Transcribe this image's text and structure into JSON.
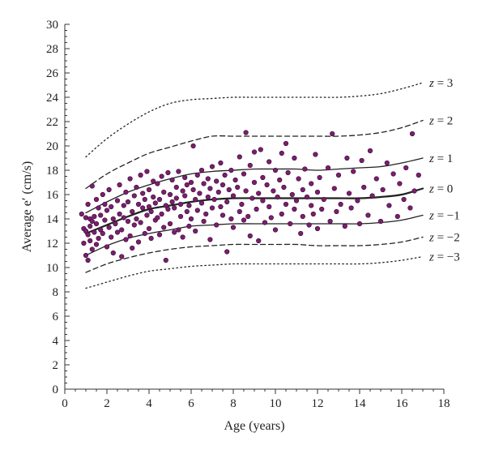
{
  "chart_data": {
    "type": "scatter",
    "xlabel": "Age (years)",
    "ylabel": "Average e′ (cm/s)",
    "xlim": [
      0,
      18
    ],
    "ylim": [
      0,
      30
    ],
    "xticks": [
      0,
      2,
      4,
      6,
      8,
      10,
      12,
      14,
      16,
      18
    ],
    "yticks": [
      0,
      2,
      4,
      6,
      8,
      10,
      12,
      14,
      16,
      18,
      20,
      22,
      24,
      26,
      28,
      30
    ],
    "grid": false,
    "point_color": "#7a1f6e",
    "curves": [
      {
        "label": "z = 3",
        "style": "dotted",
        "x": [
          1,
          2,
          3,
          4,
          5,
          6,
          7,
          8,
          9,
          10,
          11,
          12,
          13,
          14,
          15,
          16,
          17
        ],
        "y": [
          19.1,
          20.6,
          21.8,
          22.8,
          23.5,
          23.8,
          23.9,
          24.0,
          24.0,
          24.0,
          24.0,
          24.0,
          24.0,
          24.1,
          24.3,
          24.7,
          25.2
        ]
      },
      {
        "label": "z = 2",
        "style": "dashed",
        "x": [
          1,
          2,
          3,
          4,
          5,
          6,
          7,
          8,
          9,
          10,
          11,
          12,
          13,
          14,
          15,
          16,
          17
        ],
        "y": [
          16.5,
          17.7,
          18.6,
          19.4,
          19.9,
          20.4,
          20.8,
          20.8,
          20.8,
          20.8,
          20.8,
          20.8,
          20.8,
          20.9,
          21.1,
          21.5,
          22.1
        ]
      },
      {
        "label": "z = 1",
        "style": "solid",
        "x": [
          1,
          2,
          3,
          4,
          5,
          6,
          7,
          8,
          9,
          10,
          11,
          12,
          13,
          14,
          15,
          16,
          17
        ],
        "y": [
          14.5,
          15.4,
          16.2,
          16.8,
          17.3,
          17.7,
          17.9,
          18.0,
          18.1,
          18.1,
          18.1,
          18.0,
          18.1,
          18.2,
          18.3,
          18.6,
          19.0
        ]
      },
      {
        "label": "z = 0",
        "style": "bold",
        "x": [
          1,
          2,
          3,
          4,
          5,
          6,
          7,
          8,
          9,
          10,
          11,
          12,
          13,
          14,
          15,
          16,
          17
        ],
        "y": [
          12.8,
          13.5,
          14.2,
          14.8,
          15.1,
          15.4,
          15.6,
          15.7,
          15.7,
          15.7,
          15.7,
          15.7,
          15.7,
          15.7,
          15.8,
          16.0,
          16.5
        ]
      },
      {
        "label": "z = −1",
        "style": "solid",
        "x": [
          1,
          2,
          3,
          4,
          5,
          6,
          7,
          8,
          9,
          10,
          11,
          12,
          13,
          14,
          15,
          16,
          17
        ],
        "y": [
          11.0,
          11.8,
          12.4,
          12.8,
          13.1,
          13.4,
          13.5,
          13.6,
          13.6,
          13.6,
          13.6,
          13.6,
          13.6,
          13.6,
          13.7,
          13.9,
          14.3
        ]
      },
      {
        "label": "z = −2",
        "style": "dashed",
        "x": [
          1,
          2,
          3,
          4,
          5,
          6,
          7,
          8,
          9,
          10,
          11,
          12,
          13,
          14,
          15,
          16,
          17
        ],
        "y": [
          9.6,
          10.3,
          10.8,
          11.2,
          11.5,
          11.7,
          11.8,
          11.9,
          11.9,
          11.9,
          11.9,
          11.8,
          11.8,
          11.8,
          11.9,
          12.1,
          12.5
        ]
      },
      {
        "label": "z = −3",
        "style": "dotted",
        "x": [
          1,
          2,
          3,
          4,
          5,
          6,
          7,
          8,
          9,
          10,
          11,
          12,
          13,
          14,
          15,
          16,
          17
        ],
        "y": [
          8.3,
          8.8,
          9.3,
          9.7,
          9.9,
          10.1,
          10.2,
          10.3,
          10.3,
          10.3,
          10.3,
          10.3,
          10.3,
          10.3,
          10.4,
          10.6,
          10.9
        ]
      }
    ],
    "points": [
      [
        0.8,
        14.4
      ],
      [
        0.9,
        13.2
      ],
      [
        0.9,
        12.0
      ],
      [
        1.0,
        14.1
      ],
      [
        1.0,
        13.0
      ],
      [
        1.0,
        11.0
      ],
      [
        1.1,
        15.2
      ],
      [
        1.1,
        12.7
      ],
      [
        1.1,
        10.6
      ],
      [
        1.2,
        14.0
      ],
      [
        1.2,
        13.4
      ],
      [
        1.2,
        12.2
      ],
      [
        1.3,
        16.7
      ],
      [
        1.3,
        13.8
      ],
      [
        1.3,
        11.5
      ],
      [
        1.4,
        14.2
      ],
      [
        1.4,
        12.9
      ],
      [
        1.5,
        15.6
      ],
      [
        1.5,
        13.6
      ],
      [
        1.5,
        11.9
      ],
      [
        1.6,
        14.9
      ],
      [
        1.6,
        12.4
      ],
      [
        1.7,
        14.3
      ],
      [
        1.7,
        13.1
      ],
      [
        1.8,
        16.0
      ],
      [
        1.8,
        12.8
      ],
      [
        1.9,
        15.2
      ],
      [
        1.9,
        13.9
      ],
      [
        2.0,
        11.7
      ],
      [
        2.0,
        14.7
      ],
      [
        2.1,
        13.3
      ],
      [
        2.1,
        16.4
      ],
      [
        2.2,
        12.5
      ],
      [
        2.2,
        15.0
      ],
      [
        2.3,
        14.0
      ],
      [
        2.3,
        11.2
      ],
      [
        2.4,
        13.6
      ],
      [
        2.5,
        15.5
      ],
      [
        2.5,
        12.9
      ],
      [
        2.6,
        14.4
      ],
      [
        2.6,
        16.8
      ],
      [
        2.7,
        13.1
      ],
      [
        2.7,
        10.9
      ],
      [
        2.8,
        15.1
      ],
      [
        2.8,
        14.1
      ],
      [
        2.9,
        12.3
      ],
      [
        2.9,
        16.2
      ],
      [
        3.0,
        13.8
      ],
      [
        3.0,
        15.4
      ],
      [
        3.1,
        12.6
      ],
      [
        3.1,
        17.3
      ],
      [
        3.2,
        14.6
      ],
      [
        3.2,
        11.6
      ],
      [
        3.3,
        15.9
      ],
      [
        3.3,
        13.5
      ],
      [
        3.4,
        16.6
      ],
      [
        3.4,
        14.0
      ],
      [
        3.5,
        12.1
      ],
      [
        3.5,
        15.2
      ],
      [
        3.6,
        17.6
      ],
      [
        3.6,
        13.7
      ],
      [
        3.7,
        14.9
      ],
      [
        3.7,
        16.1
      ],
      [
        3.8,
        12.8
      ],
      [
        3.8,
        15.6
      ],
      [
        3.9,
        14.3
      ],
      [
        3.9,
        17.9
      ],
      [
        4.0,
        13.2
      ],
      [
        4.0,
        15.0
      ],
      [
        4.0,
        16.4
      ],
      [
        4.1,
        14.6
      ],
      [
        4.1,
        12.4
      ],
      [
        4.2,
        15.8
      ],
      [
        4.2,
        17.1
      ],
      [
        4.3,
        13.9
      ],
      [
        4.3,
        15.3
      ],
      [
        4.4,
        14.1
      ],
      [
        4.4,
        16.9
      ],
      [
        4.5,
        12.7
      ],
      [
        4.5,
        15.6
      ],
      [
        4.6,
        17.5
      ],
      [
        4.6,
        14.4
      ],
      [
        4.7,
        13.3
      ],
      [
        4.7,
        16.2
      ],
      [
        4.8,
        15.1
      ],
      [
        4.8,
        10.6
      ],
      [
        4.9,
        17.8
      ],
      [
        4.9,
        14.8
      ],
      [
        5.0,
        16.0
      ],
      [
        5.0,
        13.6
      ],
      [
        5.1,
        15.4
      ],
      [
        5.1,
        17.2
      ],
      [
        5.2,
        12.9
      ],
      [
        5.2,
        14.9
      ],
      [
        5.3,
        16.6
      ],
      [
        5.3,
        15.7
      ],
      [
        5.4,
        13.1
      ],
      [
        5.4,
        17.9
      ],
      [
        5.5,
        15.2
      ],
      [
        5.5,
        14.2
      ],
      [
        5.6,
        16.3
      ],
      [
        5.6,
        12.5
      ],
      [
        5.7,
        17.4
      ],
      [
        5.7,
        15.9
      ],
      [
        5.8,
        14.6
      ],
      [
        5.8,
        16.8
      ],
      [
        5.9,
        13.4
      ],
      [
        5.9,
        15.1
      ],
      [
        6.0,
        17.0
      ],
      [
        6.0,
        14.0
      ],
      [
        6.1,
        16.4
      ],
      [
        6.1,
        20.0
      ],
      [
        6.2,
        15.6
      ],
      [
        6.2,
        13.0
      ],
      [
        6.3,
        17.6
      ],
      [
        6.3,
        14.7
      ],
      [
        6.4,
        16.1
      ],
      [
        6.5,
        15.3
      ],
      [
        6.5,
        18.0
      ],
      [
        6.6,
        13.8
      ],
      [
        6.6,
        16.9
      ],
      [
        6.7,
        14.4
      ],
      [
        6.8,
        17.3
      ],
      [
        6.8,
        15.8
      ],
      [
        6.9,
        12.3
      ],
      [
        6.9,
        16.5
      ],
      [
        7.0,
        18.3
      ],
      [
        7.0,
        14.9
      ],
      [
        7.1,
        15.6
      ],
      [
        7.2,
        17.1
      ],
      [
        7.2,
        13.5
      ],
      [
        7.3,
        16.2
      ],
      [
        7.4,
        18.6
      ],
      [
        7.4,
        15.0
      ],
      [
        7.5,
        14.3
      ],
      [
        7.5,
        16.8
      ],
      [
        7.6,
        17.6
      ],
      [
        7.7,
        11.3
      ],
      [
        7.7,
        15.4
      ],
      [
        7.8,
        16.4
      ],
      [
        7.9,
        14.0
      ],
      [
        7.9,
        18.0
      ],
      [
        8.0,
        15.9
      ],
      [
        8.0,
        13.3
      ],
      [
        8.1,
        17.2
      ],
      [
        8.2,
        16.6
      ],
      [
        8.3,
        14.6
      ],
      [
        8.3,
        19.1
      ],
      [
        8.4,
        15.2
      ],
      [
        8.5,
        13.9
      ],
      [
        8.5,
        17.7
      ],
      [
        8.6,
        21.1
      ],
      [
        8.6,
        16.3
      ],
      [
        8.7,
        14.2
      ],
      [
        8.8,
        18.4
      ],
      [
        8.8,
        12.6
      ],
      [
        8.9,
        15.7
      ],
      [
        9.0,
        17.0
      ],
      [
        9.0,
        19.5
      ],
      [
        9.1,
        14.8
      ],
      [
        9.2,
        16.1
      ],
      [
        9.2,
        12.2
      ],
      [
        9.3,
        19.7
      ],
      [
        9.4,
        15.5
      ],
      [
        9.4,
        17.4
      ],
      [
        9.5,
        13.7
      ],
      [
        9.6,
        16.8
      ],
      [
        9.7,
        18.7
      ],
      [
        9.7,
        15.0
      ],
      [
        9.8,
        14.1
      ],
      [
        9.9,
        16.3
      ],
      [
        10.0,
        18.0
      ],
      [
        10.0,
        13.1
      ],
      [
        10.1,
        15.8
      ],
      [
        10.2,
        17.2
      ],
      [
        10.3,
        19.4
      ],
      [
        10.3,
        14.4
      ],
      [
        10.4,
        16.6
      ],
      [
        10.5,
        20.2
      ],
      [
        10.5,
        15.2
      ],
      [
        10.6,
        17.8
      ],
      [
        10.7,
        13.6
      ],
      [
        10.8,
        16.0
      ],
      [
        10.9,
        14.8
      ],
      [
        10.9,
        19.0
      ],
      [
        11.0,
        15.5
      ],
      [
        11.1,
        17.3
      ],
      [
        11.2,
        12.8
      ],
      [
        11.3,
        16.4
      ],
      [
        11.3,
        14.2
      ],
      [
        11.4,
        18.1
      ],
      [
        11.5,
        15.8
      ],
      [
        11.6,
        13.5
      ],
      [
        11.7,
        16.9
      ],
      [
        11.7,
        15.1
      ],
      [
        11.8,
        14.4
      ],
      [
        11.9,
        19.3
      ],
      [
        12.0,
        16.2
      ],
      [
        12.0,
        13.2
      ],
      [
        12.1,
        17.4
      ],
      [
        12.2,
        14.8
      ],
      [
        12.3,
        15.6
      ],
      [
        12.5,
        18.2
      ],
      [
        12.6,
        13.8
      ],
      [
        12.7,
        21.0
      ],
      [
        12.8,
        16.5
      ],
      [
        12.9,
        14.6
      ],
      [
        13.0,
        17.6
      ],
      [
        13.1,
        15.2
      ],
      [
        13.3,
        13.4
      ],
      [
        13.4,
        19.0
      ],
      [
        13.5,
        16.1
      ],
      [
        13.6,
        14.9
      ],
      [
        13.7,
        17.9
      ],
      [
        13.9,
        15.5
      ],
      [
        14.0,
        13.6
      ],
      [
        14.1,
        18.8
      ],
      [
        14.2,
        16.6
      ],
      [
        14.4,
        14.3
      ],
      [
        14.5,
        19.6
      ],
      [
        14.6,
        15.9
      ],
      [
        14.8,
        17.3
      ],
      [
        15.0,
        13.8
      ],
      [
        15.1,
        16.4
      ],
      [
        15.3,
        18.6
      ],
      [
        15.4,
        15.1
      ],
      [
        15.6,
        17.7
      ],
      [
        15.8,
        14.2
      ],
      [
        15.9,
        16.9
      ],
      [
        16.1,
        15.6
      ],
      [
        16.2,
        18.2
      ],
      [
        16.4,
        14.9
      ],
      [
        16.5,
        21.0
      ],
      [
        16.6,
        16.3
      ],
      [
        16.8,
        17.6
      ]
    ]
  }
}
